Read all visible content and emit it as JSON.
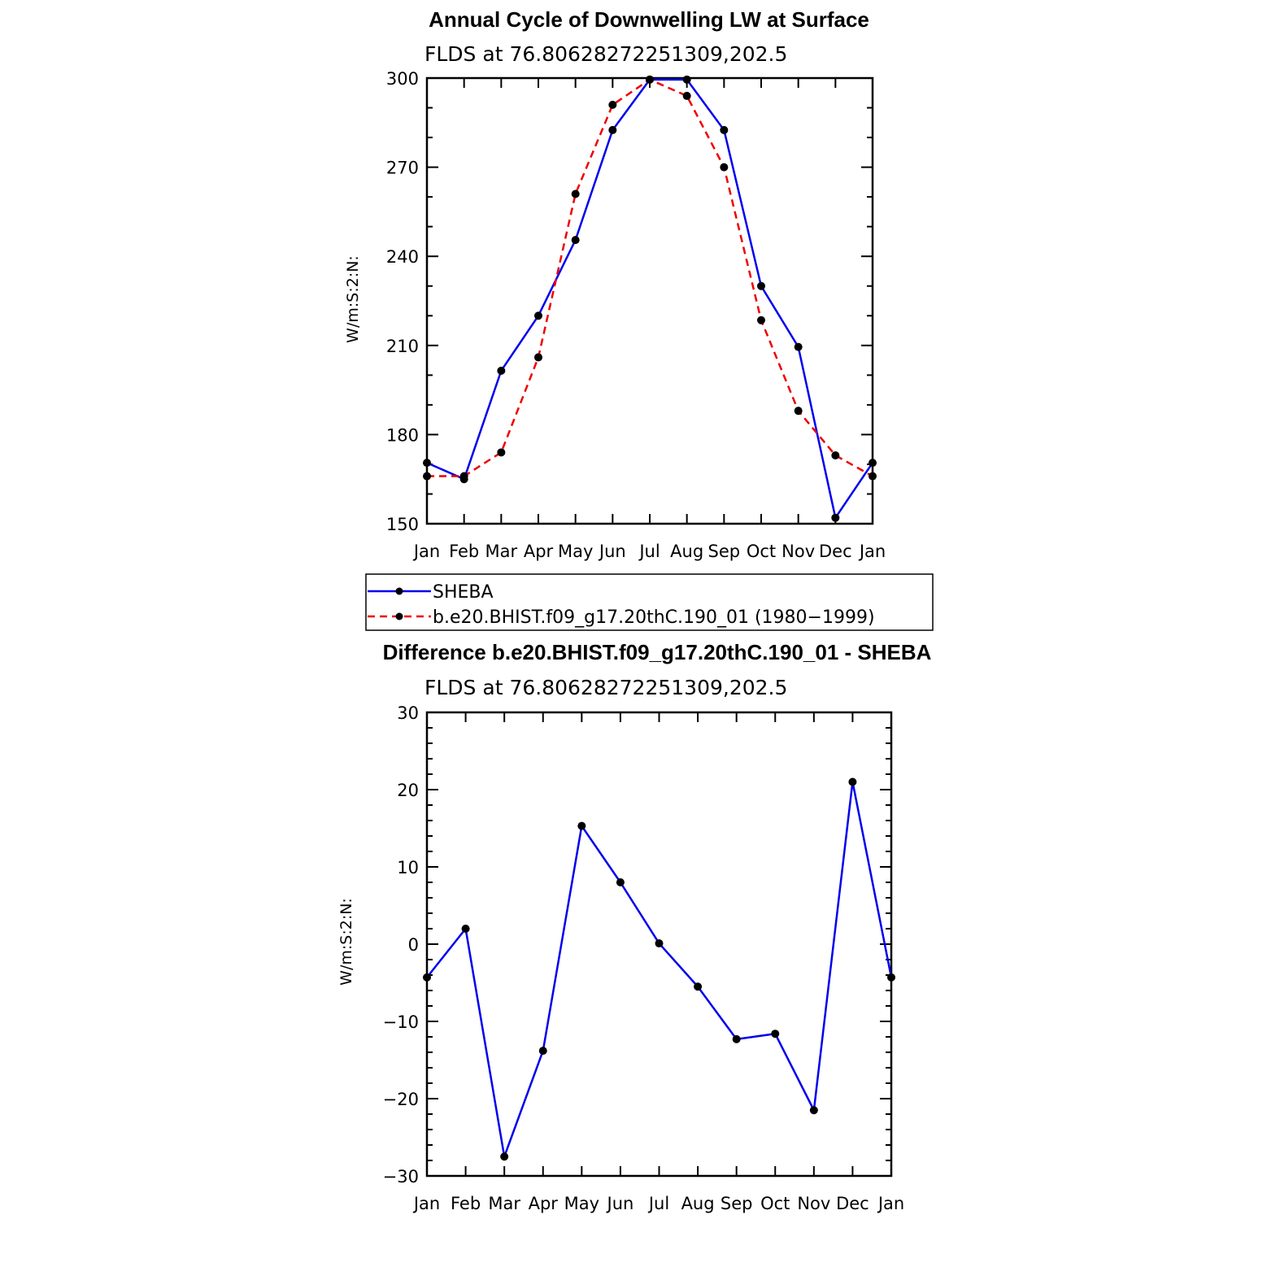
{
  "chart_data": [
    {
      "type": "line",
      "title": "Annual Cycle of Downwelling LW at Surface",
      "subtitle": "FLDS at 76.80628272251309,202.5",
      "ylabel": "W/m:S:2:N:",
      "xlabel": "",
      "categories": [
        "Jan",
        "Feb",
        "Mar",
        "Apr",
        "May",
        "Jun",
        "Jul",
        "Aug",
        "Sep",
        "Oct",
        "Nov",
        "Dec",
        "Jan"
      ],
      "ylim": [
        150,
        300
      ],
      "yticks": [
        150,
        180,
        210,
        240,
        270,
        300
      ],
      "series": [
        {
          "name": "SHEBA",
          "color": "#0000ee",
          "dash": "solid",
          "values": [
            170.5,
            165,
            201.5,
            220,
            245.5,
            282.5,
            299.5,
            299.5,
            282.5,
            230,
            209.5,
            152,
            170.5
          ]
        },
        {
          "name": "b.e20.BHIST.f09_g17.20thC.190_01 (1980−1999)",
          "color": "#ee0000",
          "dash": "dashed",
          "values": [
            166,
            166,
            174,
            206,
            261,
            291,
            299.5,
            294,
            270,
            218.5,
            188,
            173,
            166
          ]
        }
      ],
      "legend": {
        "placement": "below",
        "border": true
      }
    },
    {
      "type": "line",
      "title": "Difference b.e20.BHIST.f09_g17.20thC.190_01 - SHEBA",
      "subtitle": "FLDS at 76.80628272251309,202.5",
      "ylabel": "W/m:S:2:N:",
      "xlabel": "",
      "categories": [
        "Jan",
        "Feb",
        "Mar",
        "Apr",
        "May",
        "Jun",
        "Jul",
        "Aug",
        "Sep",
        "Oct",
        "Nov",
        "Dec",
        "Jan"
      ],
      "ylim": [
        -30,
        30
      ],
      "yticks": [
        -30,
        -20,
        -10,
        0,
        10,
        20,
        30
      ],
      "ytick_labels": [
        "−30",
        "−20",
        "−10",
        "0",
        "10",
        "20",
        "30"
      ],
      "series": [
        {
          "color": "#0000ee",
          "dash": "solid",
          "values": [
            -4.3,
            2,
            -27.5,
            -13.8,
            15.3,
            8,
            0.1,
            -5.5,
            -12.3,
            -11.6,
            -21.5,
            21,
            -4.3
          ]
        }
      ]
    }
  ]
}
